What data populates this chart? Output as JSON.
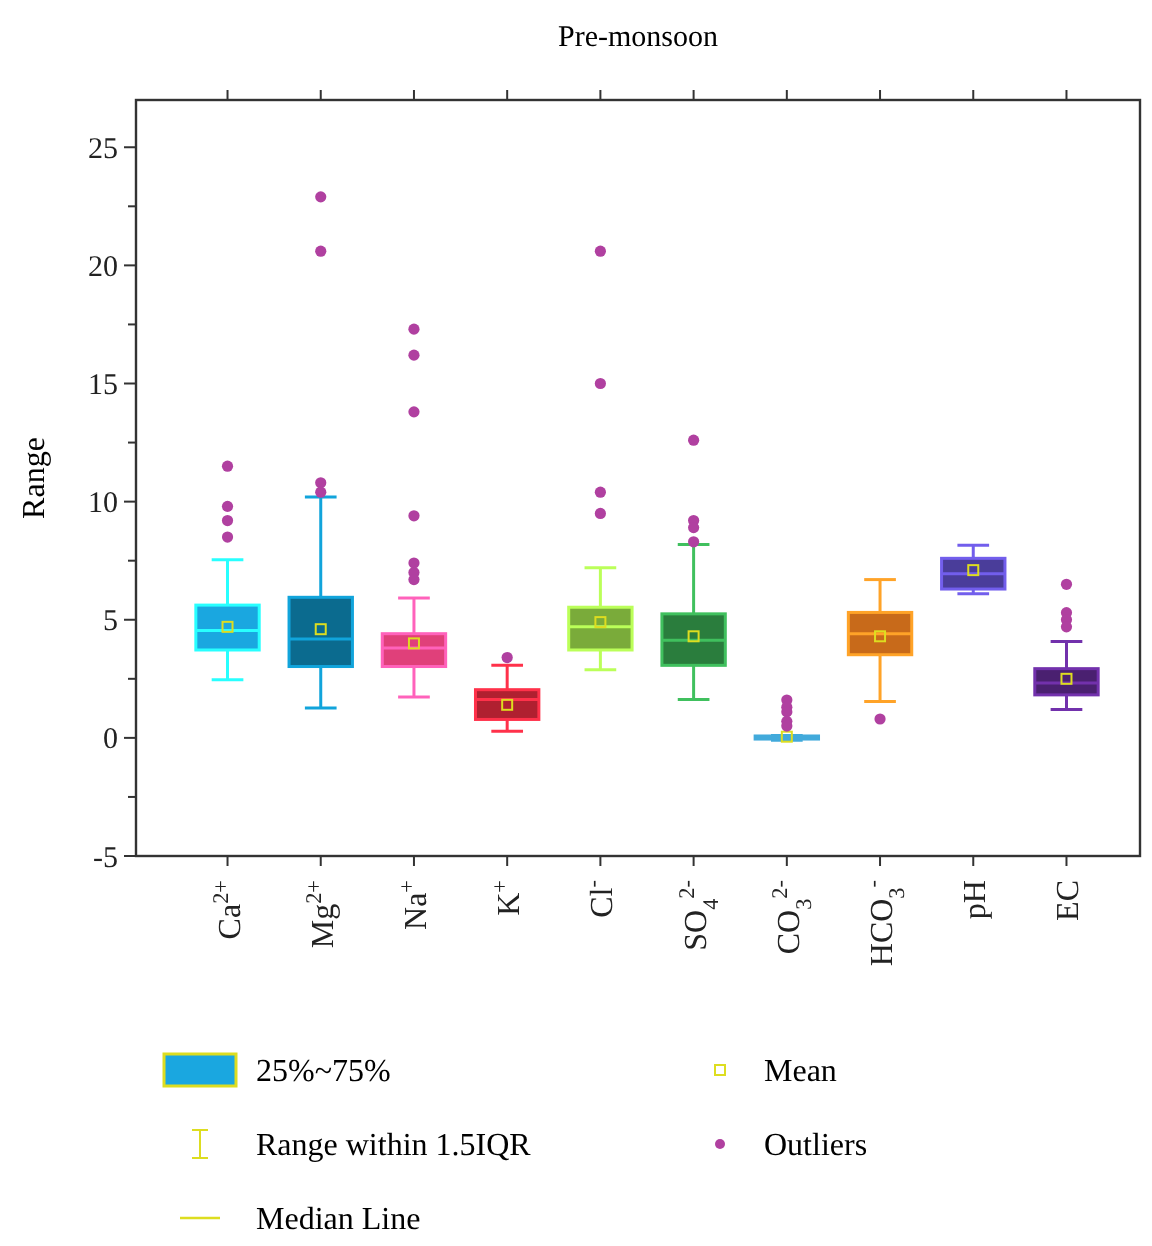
{
  "chart_data": {
    "type": "box",
    "title": "Pre-monsoon",
    "ylabel": "Range",
    "categories": [
      "Ca$^{2+}$",
      "Mg$^{2+}$",
      "Na$^{+}$",
      "K$^{+}$",
      "Cl$^{-}$",
      "SO$_{4}$$^{2-}$",
      "CO$_{3}$$^{2-}$",
      "HCO$_{3}$$^{-}$",
      "pH",
      "EC"
    ],
    "ylim": [
      -5,
      27
    ],
    "yticks": [
      -5,
      {
        "value": -2.5,
        "label": null
      },
      0,
      {
        "value": 2.5,
        "label": null
      },
      5,
      {
        "value": 7.5,
        "label": null
      },
      10,
      {
        "value": 12.5,
        "label": null
      },
      15,
      {
        "value": 17.5,
        "label": null
      },
      20,
      {
        "value": 22.5,
        "label": null
      },
      25
    ],
    "grid": false,
    "legend": "bottom",
    "series": [
      {
        "name": "25%~75%",
        "colors": [
          "#1aa7e0",
          "#0b6b8f",
          "#e0407a",
          "#b02030",
          "#7aab3a",
          "#2a7d3d",
          "#2b6f8f",
          "#c86a1a",
          "#4a3d9a",
          "#4a2070"
        ],
        "boxes": [
          {
            "low": 2.46,
            "q1": 3.72,
            "median": 4.55,
            "q3": 5.62,
            "high": 7.54,
            "mean": 4.7
          },
          {
            "low": 1.26,
            "q1": 3.02,
            "median": 4.19,
            "q3": 5.95,
            "high": 10.2,
            "mean": 4.6
          },
          {
            "low": 1.73,
            "q1": 3.02,
            "median": 3.8,
            "q3": 4.41,
            "high": 5.92,
            "mean": 4.0
          },
          {
            "low": 0.28,
            "q1": 0.78,
            "median": 1.62,
            "q3": 2.04,
            "high": 3.07,
            "mean": 1.4
          },
          {
            "low": 2.88,
            "q1": 3.72,
            "median": 4.7,
            "q3": 5.53,
            "high": 7.2,
            "mean": 4.9
          },
          {
            "low": 1.62,
            "q1": 3.07,
            "median": 4.13,
            "q3": 5.25,
            "high": 8.18,
            "mean": 4.3
          },
          {
            "low": -0.1,
            "q1": -0.05,
            "median": 0,
            "q3": 0.08,
            "high": 0.1,
            "mean": 0.05
          },
          {
            "low": 1.54,
            "q1": 3.52,
            "median": 4.41,
            "q3": 5.31,
            "high": 6.7,
            "mean": 4.3
          },
          {
            "low": 6.1,
            "q1": 6.3,
            "median": 6.95,
            "q3": 7.6,
            "high": 8.15,
            "mean": 7.1
          },
          {
            "low": 1.2,
            "q1": 1.82,
            "median": 2.32,
            "q3": 2.93,
            "high": 4.08,
            "mean": 2.5
          }
        ]
      },
      {
        "name": "Outliers",
        "type": "scatter",
        "color": "#b040a0",
        "marker": "circle",
        "x": [
          "Ca$^{2+}$",
          "Ca$^{2+}$",
          "Ca$^{2+}$",
          "Ca$^{2+}$",
          "Mg$^{2+}$",
          "Mg$^{2+}$",
          "Mg$^{2+}$",
          "Mg$^{2+}$",
          "Na$^{+}$",
          "Na$^{+}$",
          "Na$^{+}$",
          "Na$^{+}$",
          "Na$^{+}$",
          "Na$^{+}$",
          "Na$^{+}$",
          "K$^{+}$",
          "Cl$^{-}$",
          "Cl$^{-}$",
          "Cl$^{-}$",
          "Cl$^{-}$",
          "SO$_{4}$$^{2-}$",
          "SO$_{4}$$^{2-}$",
          "SO$_{4}$$^{2-}$",
          "SO$_{4}$$^{2-}$",
          "CO$_{3}$$^{2-}$",
          "CO$_{3}$$^{2-}$",
          "CO$_{3}$$^{2-}$",
          "CO$_{3}$$^{2-}$",
          "CO$_{3}$$^{2-}$",
          "HCO$_{3}$$^{-}$",
          "EC",
          "EC",
          "EC",
          "EC"
        ],
        "values": [
          11.5,
          9.8,
          9.2,
          8.5,
          22.9,
          20.6,
          10.8,
          10.4,
          17.3,
          16.2,
          13.8,
          9.4,
          7.4,
          7.0,
          6.7,
          3.4,
          20.6,
          15.0,
          10.4,
          9.5,
          12.6,
          9.2,
          8.9,
          8.3,
          1.6,
          1.3,
          1.1,
          0.7,
          0.5,
          0.8,
          6.5,
          5.3,
          5.0,
          4.7
        ]
      }
    ],
    "annotations": [
      "Range within 1.5IQR",
      "Median Line",
      "Mean"
    ]
  }
}
